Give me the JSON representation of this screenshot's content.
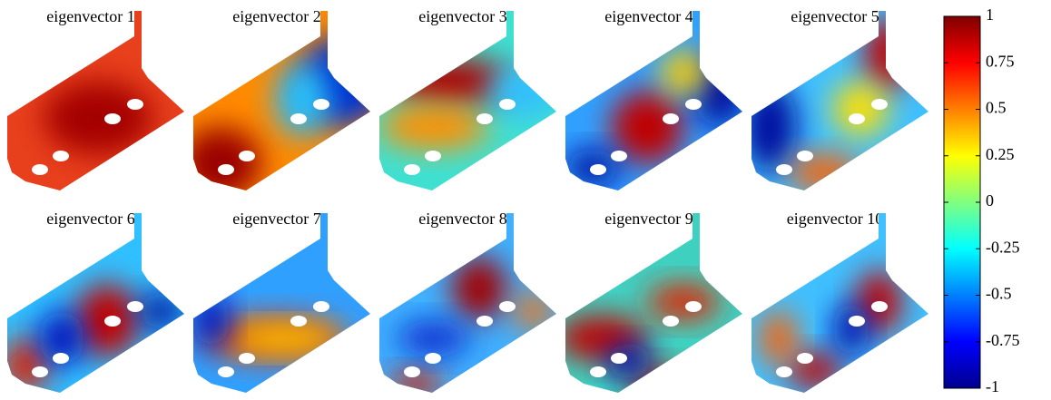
{
  "panels": [
    {
      "title": "eigenvector 1"
    },
    {
      "title": "eigenvector 2"
    },
    {
      "title": "eigenvector 3"
    },
    {
      "title": "eigenvector 4"
    },
    {
      "title": "eigenvector 5"
    },
    {
      "title": "eigenvector 6"
    },
    {
      "title": "eigenvector 7"
    },
    {
      "title": "eigenvector 8"
    },
    {
      "title": "eigenvector 9"
    },
    {
      "title": "eigenvector 10"
    }
  ],
  "colorbar": {
    "lim": [
      -1,
      1
    ],
    "ticks": [
      1,
      0.75,
      0.5,
      0.25,
      0,
      -0.25,
      -0.5,
      -0.75,
      -1
    ]
  }
}
